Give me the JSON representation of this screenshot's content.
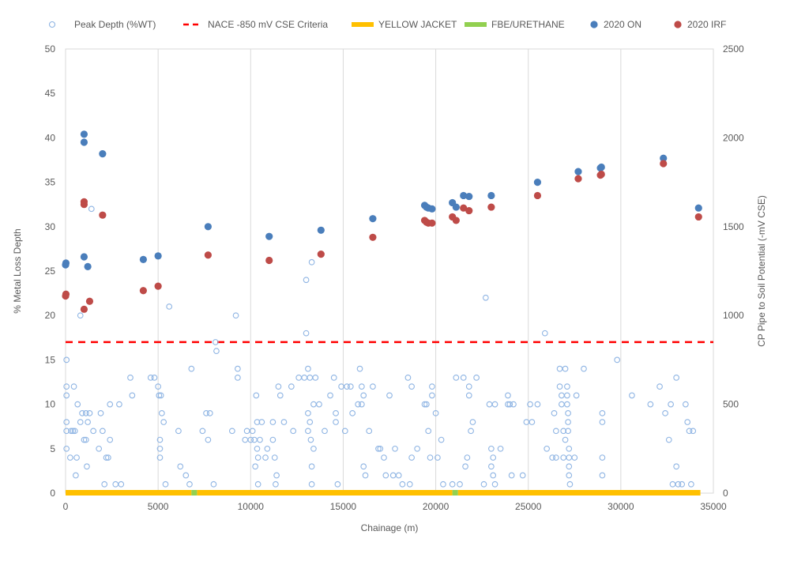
{
  "chart_data": {
    "type": "scatter",
    "title": "",
    "xlabel": "Chainage (m)",
    "ylabel_left": "% Metal Loss Depth",
    "ylabel_right": "CP Pipe to Soil Potential (-mV CSE)",
    "xlim": [
      0,
      35000
    ],
    "ylim_left": [
      0,
      50
    ],
    "ylim_right": [
      0,
      2500
    ],
    "x_ticks": [
      "0",
      "5000",
      "10000",
      "15000",
      "20000",
      "25000",
      "30000",
      "35000"
    ],
    "y_ticks_left": [
      "0",
      "5",
      "10",
      "15",
      "20",
      "25",
      "30",
      "35",
      "40",
      "45",
      "50"
    ],
    "y_ticks_right": [
      "0",
      "500",
      "1000",
      "1500",
      "2000",
      "2500"
    ],
    "grid": "vertical",
    "legend_position": "top",
    "colors": {
      "peak_depth": "#8eb4e3",
      "nace": "#ff0000",
      "yellow_jacket": "#ffc000",
      "fbe_urethane": "#92d050",
      "on": "#4a7ebb",
      "irf": "#be4b48",
      "grid": "#d9d9d9"
    },
    "series": [
      {
        "name": "Peak Depth (%WT)",
        "axis": "left",
        "marker": "open-circle",
        "points": [
          [
            50,
            15
          ],
          [
            50,
            12
          ],
          [
            50,
            11
          ],
          [
            50,
            8
          ],
          [
            50,
            7
          ],
          [
            50,
            5
          ],
          [
            250,
            4
          ],
          [
            300,
            7
          ],
          [
            400,
            7
          ],
          [
            500,
            7
          ],
          [
            550,
            2
          ],
          [
            450,
            12
          ],
          [
            650,
            10
          ],
          [
            600,
            4
          ],
          [
            800,
            8
          ],
          [
            800,
            20
          ],
          [
            900,
            9
          ],
          [
            1000,
            6
          ],
          [
            1100,
            9
          ],
          [
            1100,
            6
          ],
          [
            1150,
            3
          ],
          [
            1200,
            8
          ],
          [
            1300,
            9
          ],
          [
            1400,
            32
          ],
          [
            1500,
            7
          ],
          [
            1800,
            5
          ],
          [
            1900,
            9
          ],
          [
            2000,
            7
          ],
          [
            2100,
            1
          ],
          [
            2200,
            4
          ],
          [
            2300,
            4
          ],
          [
            2400,
            6
          ],
          [
            2400,
            10
          ],
          [
            2700,
            1
          ],
          [
            2900,
            10
          ],
          [
            3000,
            1
          ],
          [
            3500,
            13
          ],
          [
            3600,
            11
          ],
          [
            4600,
            13
          ],
          [
            4800,
            13
          ],
          [
            5000,
            12
          ],
          [
            5050,
            11
          ],
          [
            5100,
            5
          ],
          [
            5100,
            6
          ],
          [
            5100,
            4
          ],
          [
            5150,
            11
          ],
          [
            5200,
            9
          ],
          [
            5300,
            8
          ],
          [
            5400,
            1
          ],
          [
            5600,
            21
          ],
          [
            6100,
            7
          ],
          [
            6200,
            3
          ],
          [
            6500,
            2
          ],
          [
            6700,
            1
          ],
          [
            6800,
            14
          ],
          [
            7400,
            7
          ],
          [
            7600,
            9
          ],
          [
            7700,
            6
          ],
          [
            7800,
            9
          ],
          [
            8000,
            1
          ],
          [
            8100,
            17
          ],
          [
            8150,
            16
          ],
          [
            9200,
            20
          ],
          [
            9300,
            14
          ],
          [
            9300,
            13
          ],
          [
            9000,
            7
          ],
          [
            9700,
            6
          ],
          [
            9800,
            7
          ],
          [
            10000,
            6
          ],
          [
            10100,
            7
          ],
          [
            10200,
            6
          ],
          [
            10250,
            3
          ],
          [
            10300,
            11
          ],
          [
            10350,
            8
          ],
          [
            10350,
            5
          ],
          [
            10400,
            4
          ],
          [
            10400,
            1
          ],
          [
            10500,
            6
          ],
          [
            10600,
            8
          ],
          [
            10800,
            4
          ],
          [
            10900,
            5
          ],
          [
            11200,
            8
          ],
          [
            11200,
            6
          ],
          [
            11300,
            4
          ],
          [
            11400,
            2
          ],
          [
            11350,
            1
          ],
          [
            11500,
            12
          ],
          [
            11600,
            11
          ],
          [
            11800,
            8
          ],
          [
            12200,
            12
          ],
          [
            12300,
            7
          ],
          [
            12600,
            13
          ],
          [
            12900,
            13
          ],
          [
            13000,
            24
          ],
          [
            13000,
            18
          ],
          [
            13100,
            14
          ],
          [
            13100,
            9
          ],
          [
            13100,
            7
          ],
          [
            13200,
            13
          ],
          [
            13200,
            8
          ],
          [
            13250,
            6
          ],
          [
            13300,
            3
          ],
          [
            13300,
            1
          ],
          [
            13300,
            26
          ],
          [
            13400,
            5
          ],
          [
            13400,
            10
          ],
          [
            13500,
            13
          ],
          [
            13700,
            10
          ],
          [
            14000,
            7
          ],
          [
            14300,
            11
          ],
          [
            14500,
            13
          ],
          [
            14600,
            9
          ],
          [
            14600,
            8
          ],
          [
            14700,
            1
          ],
          [
            14900,
            12
          ],
          [
            15100,
            7
          ],
          [
            15200,
            12
          ],
          [
            15400,
            12
          ],
          [
            15500,
            9
          ],
          [
            15800,
            10
          ],
          [
            15900,
            14
          ],
          [
            16000,
            12
          ],
          [
            16000,
            10
          ],
          [
            16100,
            11
          ],
          [
            16100,
            3
          ],
          [
            16200,
            2
          ],
          [
            16400,
            7
          ],
          [
            16600,
            12
          ],
          [
            16900,
            5
          ],
          [
            17000,
            5
          ],
          [
            17200,
            4
          ],
          [
            17300,
            2
          ],
          [
            17500,
            11
          ],
          [
            17700,
            2
          ],
          [
            17800,
            5
          ],
          [
            18000,
            2
          ],
          [
            18200,
            1
          ],
          [
            18500,
            13
          ],
          [
            18600,
            1
          ],
          [
            18700,
            4
          ],
          [
            18700,
            12
          ],
          [
            19000,
            5
          ],
          [
            19400,
            10
          ],
          [
            19500,
            10
          ],
          [
            19600,
            7
          ],
          [
            19700,
            4
          ],
          [
            19800,
            11
          ],
          [
            19800,
            12
          ],
          [
            20000,
            9
          ],
          [
            20100,
            4
          ],
          [
            20300,
            6
          ],
          [
            20400,
            1
          ],
          [
            20900,
            1
          ],
          [
            21100,
            13
          ],
          [
            21300,
            1
          ],
          [
            21500,
            13
          ],
          [
            21600,
            3
          ],
          [
            21700,
            4
          ],
          [
            21800,
            12
          ],
          [
            21800,
            11
          ],
          [
            21900,
            7
          ],
          [
            22000,
            8
          ],
          [
            22200,
            13
          ],
          [
            22600,
            1
          ],
          [
            22700,
            22
          ],
          [
            22900,
            10
          ],
          [
            23000,
            5
          ],
          [
            23000,
            3
          ],
          [
            23100,
            2
          ],
          [
            23200,
            1
          ],
          [
            23100,
            4
          ],
          [
            23200,
            10
          ],
          [
            23500,
            5
          ],
          [
            23900,
            10
          ],
          [
            23900,
            11
          ],
          [
            24000,
            10
          ],
          [
            24100,
            2
          ],
          [
            24200,
            10
          ],
          [
            24700,
            2
          ],
          [
            24900,
            8
          ],
          [
            25100,
            10
          ],
          [
            25200,
            8
          ],
          [
            25500,
            10
          ],
          [
            25900,
            18
          ],
          [
            26000,
            5
          ],
          [
            26300,
            4
          ],
          [
            26400,
            9
          ],
          [
            26500,
            7
          ],
          [
            26500,
            4
          ],
          [
            26700,
            14
          ],
          [
            26700,
            12
          ],
          [
            26800,
            11
          ],
          [
            26800,
            10
          ],
          [
            26900,
            4
          ],
          [
            26900,
            7
          ],
          [
            27000,
            14
          ],
          [
            27000,
            6
          ],
          [
            27100,
            12
          ],
          [
            27100,
            11
          ],
          [
            27100,
            10
          ],
          [
            27150,
            9
          ],
          [
            27150,
            8
          ],
          [
            27150,
            7
          ],
          [
            27200,
            5
          ],
          [
            27200,
            4
          ],
          [
            27200,
            3
          ],
          [
            27200,
            2
          ],
          [
            27250,
            1
          ],
          [
            27500,
            4
          ],
          [
            27600,
            11
          ],
          [
            28000,
            14
          ],
          [
            29000,
            9
          ],
          [
            29000,
            8
          ],
          [
            29000,
            4
          ],
          [
            29000,
            2
          ],
          [
            29800,
            15
          ],
          [
            30600,
            11
          ],
          [
            31600,
            10
          ],
          [
            32100,
            12
          ],
          [
            32400,
            9
          ],
          [
            32600,
            6
          ],
          [
            32700,
            10
          ],
          [
            32800,
            1
          ],
          [
            33000,
            13
          ],
          [
            33000,
            3
          ],
          [
            33100,
            1
          ],
          [
            33300,
            1
          ],
          [
            33500,
            10
          ],
          [
            33600,
            8
          ],
          [
            33700,
            7
          ],
          [
            33900,
            7
          ],
          [
            33800,
            1
          ]
        ]
      },
      {
        "name": "NACE -850 mV CSE Criteria",
        "axis": "right",
        "type": "line",
        "style": "dashed",
        "x": [
          0,
          35000
        ],
        "values": [
          850,
          850
        ]
      },
      {
        "name": "YELLOW JACKET",
        "axis": "right",
        "type": "band",
        "segments": [
          [
            0,
            6800
          ],
          [
            7100,
            20900
          ],
          [
            21200,
            34300
          ]
        ]
      },
      {
        "name": "FBE/URETHANE",
        "axis": "right",
        "type": "band",
        "segments": [
          [
            6800,
            7100
          ],
          [
            20900,
            21200
          ]
        ]
      },
      {
        "name": "2020 ON",
        "axis": "right",
        "marker": "filled-circle",
        "points": [
          [
            0,
            1285
          ],
          [
            20,
            1295
          ],
          [
            1000,
            2020
          ],
          [
            1000,
            1975
          ],
          [
            1000,
            1330
          ],
          [
            1200,
            1275
          ],
          [
            2000,
            1910
          ],
          [
            4200,
            1315
          ],
          [
            5000,
            1335
          ],
          [
            7700,
            1500
          ],
          [
            11000,
            1445
          ],
          [
            13800,
            1480
          ],
          [
            16600,
            1545
          ],
          [
            19400,
            1620
          ],
          [
            19500,
            1610
          ],
          [
            19600,
            1605
          ],
          [
            19800,
            1600
          ],
          [
            20900,
            1635
          ],
          [
            21100,
            1610
          ],
          [
            21500,
            1675
          ],
          [
            21800,
            1670
          ],
          [
            23000,
            1675
          ],
          [
            25500,
            1750
          ],
          [
            27700,
            1810
          ],
          [
            28900,
            1830
          ],
          [
            28950,
            1835
          ],
          [
            32300,
            1885
          ],
          [
            34200,
            1605
          ]
        ]
      },
      {
        "name": "2020 IRF",
        "axis": "right",
        "marker": "filled-circle",
        "points": [
          [
            0,
            1110
          ],
          [
            20,
            1120
          ],
          [
            1000,
            1640
          ],
          [
            1000,
            1625
          ],
          [
            1000,
            1035
          ],
          [
            1300,
            1080
          ],
          [
            2000,
            1565
          ],
          [
            4200,
            1140
          ],
          [
            5000,
            1165
          ],
          [
            7700,
            1340
          ],
          [
            11000,
            1310
          ],
          [
            13800,
            1345
          ],
          [
            16600,
            1440
          ],
          [
            19400,
            1535
          ],
          [
            19500,
            1525
          ],
          [
            19600,
            1520
          ],
          [
            19800,
            1520
          ],
          [
            20900,
            1555
          ],
          [
            21100,
            1535
          ],
          [
            21500,
            1605
          ],
          [
            21800,
            1590
          ],
          [
            23000,
            1610
          ],
          [
            25500,
            1675
          ],
          [
            27700,
            1770
          ],
          [
            28900,
            1790
          ],
          [
            28950,
            1795
          ],
          [
            32300,
            1855
          ],
          [
            34200,
            1555
          ]
        ]
      }
    ]
  }
}
